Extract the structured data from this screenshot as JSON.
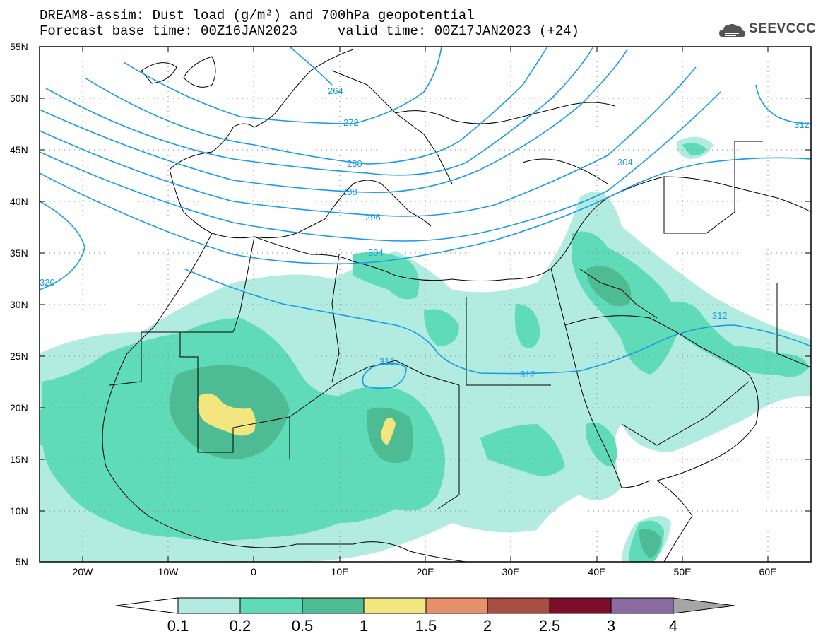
{
  "header": {
    "title_line1": "DREAM8-assim: Dust load (g/m²) and 700hPa geopotential",
    "title_line2": "Forecast base time: 00Z16JAN2023     valid time: 00Z17JAN2023 (+24)"
  },
  "logo": {
    "text": "SEEVCCC",
    "icon": "cloud-logo-icon"
  },
  "map": {
    "lat_labels": [
      "55N",
      "50N",
      "45N",
      "40N",
      "35N",
      "30N",
      "25N",
      "20N",
      "15N",
      "10N",
      "5N"
    ],
    "lon_labels": [
      "20W",
      "10W",
      "0",
      "10E",
      "20E",
      "30E",
      "40E",
      "50E",
      "60E"
    ],
    "contour_labels": [
      "264",
      "272",
      "280",
      "288",
      "296",
      "304",
      "304",
      "312",
      "312",
      "312",
      "312",
      "320"
    ],
    "colors": {
      "contour": "#1a9be6",
      "border": "#000000"
    }
  },
  "colorbar": {
    "levels": [
      "0.1",
      "0.2",
      "0.5",
      "1",
      "1.5",
      "2",
      "2.5",
      "3",
      "4"
    ],
    "colors": [
      "#ffffff",
      "#b2ebe0",
      "#5fdcb7",
      "#4dbc94",
      "#f2e67e",
      "#e8906a",
      "#a84e42",
      "#7c0e2a",
      "#8c6aa2",
      "#a6a6a6"
    ]
  }
}
